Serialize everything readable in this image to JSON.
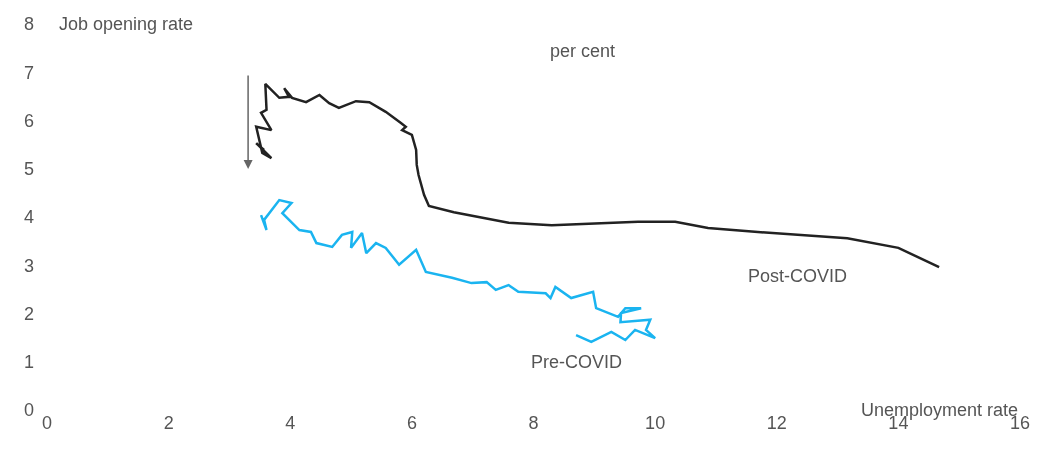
{
  "chart_data": {
    "type": "line",
    "subtitle": "per cent",
    "ylabel": "Job opening rate",
    "xlabel": "Unemployment rate",
    "xlim": [
      0,
      16
    ],
    "xticks": [
      0,
      2,
      4,
      6,
      8,
      10,
      12,
      14,
      16
    ],
    "ylim": [
      0,
      8
    ],
    "yticks": [
      0,
      1,
      2,
      3,
      4,
      5,
      6,
      7,
      8
    ],
    "legend": false,
    "marker": "none",
    "line_style": "solid",
    "series": [
      {
        "name": "Post-COVID",
        "color": "#222222",
        "x": [
          3.57,
          3.44,
          3.69,
          3.54,
          3.44,
          3.69,
          3.52,
          3.61,
          3.59,
          3.82,
          3.98,
          3.9,
          4.03,
          4.26,
          4.48,
          4.64,
          4.8,
          5.08,
          5.3,
          5.57,
          5.82,
          5.9,
          5.84,
          6.0,
          6.07,
          6.08,
          6.11,
          6.2,
          6.28,
          6.69,
          7.59,
          8.3,
          9.72,
          10.33,
          10.87,
          11.69,
          13.16,
          14.0,
          14.67
        ],
        "values": [
          5.39,
          5.53,
          5.22,
          5.33,
          5.87,
          5.8,
          6.16,
          6.22,
          6.76,
          6.47,
          6.49,
          6.67,
          6.47,
          6.38,
          6.53,
          6.36,
          6.26,
          6.4,
          6.38,
          6.18,
          5.95,
          5.87,
          5.8,
          5.7,
          5.39,
          5.08,
          4.87,
          4.46,
          4.23,
          4.1,
          3.88,
          3.83,
          3.9,
          3.9,
          3.77,
          3.69,
          3.56,
          3.36,
          2.96
        ]
      },
      {
        "name": "Pre-COVID",
        "color": "#1ab4f0",
        "x": [
          3.52,
          3.61,
          3.57,
          3.82,
          4.02,
          3.87,
          4.15,
          4.34,
          4.43,
          4.69,
          4.85,
          5.02,
          5.0,
          5.18,
          5.25,
          5.41,
          5.57,
          5.79,
          6.07,
          6.23,
          6.66,
          6.98,
          7.23,
          7.38,
          7.59,
          7.75,
          8.2,
          8.28,
          8.36,
          8.62,
          8.98,
          9.03,
          9.39,
          9.51,
          9.77,
          9.44,
          9.43,
          9.92,
          9.85,
          10.0,
          9.67,
          9.51,
          9.28,
          8.95,
          8.7
        ],
        "values": [
          4.04,
          3.73,
          3.94,
          4.35,
          4.29,
          4.08,
          3.73,
          3.69,
          3.46,
          3.38,
          3.63,
          3.69,
          3.36,
          3.67,
          3.25,
          3.46,
          3.36,
          3.01,
          3.32,
          2.86,
          2.74,
          2.63,
          2.65,
          2.49,
          2.59,
          2.45,
          2.42,
          2.32,
          2.55,
          2.32,
          2.45,
          2.11,
          1.93,
          2.11,
          2.11,
          2.01,
          1.82,
          1.87,
          1.66,
          1.49,
          1.66,
          1.45,
          1.62,
          1.41,
          1.55
        ]
      }
    ]
  }
}
